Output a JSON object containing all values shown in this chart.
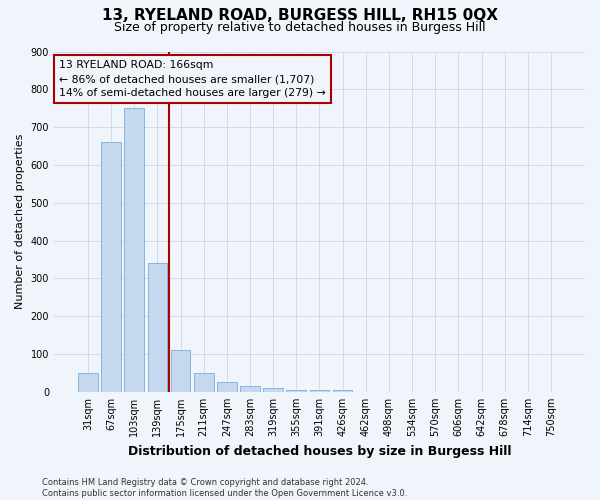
{
  "title": "13, RYELAND ROAD, BURGESS HILL, RH15 0QX",
  "subtitle": "Size of property relative to detached houses in Burgess Hill",
  "xlabel": "Distribution of detached houses by size in Burgess Hill",
  "ylabel": "Number of detached properties",
  "bar_color": "#c5d8f0",
  "bar_edge_color": "#7aadd4",
  "categories": [
    "31sqm",
    "67sqm",
    "103sqm",
    "139sqm",
    "175sqm",
    "211sqm",
    "247sqm",
    "283sqm",
    "319sqm",
    "355sqm",
    "391sqm",
    "426sqm",
    "462sqm",
    "498sqm",
    "534sqm",
    "570sqm",
    "606sqm",
    "642sqm",
    "678sqm",
    "714sqm",
    "750sqm"
  ],
  "values": [
    50,
    660,
    750,
    340,
    110,
    50,
    25,
    15,
    10,
    5,
    5,
    5,
    0,
    0,
    0,
    0,
    0,
    0,
    0,
    0,
    0
  ],
  "vline_x": 3.5,
  "vline_color": "#aa0000",
  "annotation_line1": "13 RYELAND ROAD: 166sqm",
  "annotation_line2": "← 86% of detached houses are smaller (1,707)",
  "annotation_line3": "14% of semi-detached houses are larger (279) →",
  "annotation_box_color": "#aa0000",
  "ylim": [
    0,
    900
  ],
  "yticks": [
    0,
    100,
    200,
    300,
    400,
    500,
    600,
    700,
    800,
    900
  ],
  "grid_color": "#ccd5e8",
  "footer": "Contains HM Land Registry data © Crown copyright and database right 2024.\nContains public sector information licensed under the Open Government Licence v3.0.",
  "bg_color": "#f0f4fb",
  "title_fontsize": 11,
  "subtitle_fontsize": 9,
  "ylabel_fontsize": 8,
  "xlabel_fontsize": 9,
  "tick_fontsize": 7,
  "footer_fontsize": 6
}
